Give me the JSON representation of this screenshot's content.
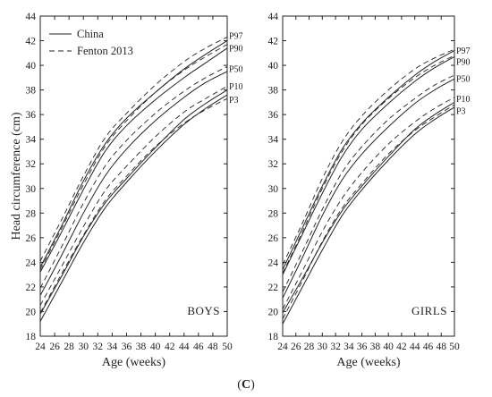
{
  "figure": {
    "caption_open": "(",
    "caption_letter": "C",
    "caption_close": ")"
  },
  "legend": {
    "china": "China",
    "fenton": "Fenton 2013"
  },
  "chart_data": [
    {
      "type": "line",
      "panel_label": "BOYS",
      "xlabel": "Age (weeks)",
      "ylabel": "Head circumference (cm)",
      "xlim": [
        24,
        50
      ],
      "ylim": [
        18,
        44
      ],
      "xticks": [
        24,
        26,
        28,
        30,
        32,
        34,
        36,
        38,
        40,
        42,
        44,
        46,
        48,
        50
      ],
      "yticks": [
        18,
        20,
        22,
        24,
        26,
        28,
        30,
        32,
        34,
        36,
        38,
        40,
        42,
        44
      ],
      "legend_position": "top-left",
      "grid": false,
      "x": [
        24,
        27,
        30,
        33,
        36,
        40,
        44,
        47,
        50
      ],
      "series": [
        {
          "name": "China",
          "style": "solid",
          "percentile": "P97",
          "values": [
            23.6,
            27.0,
            30.6,
            33.6,
            35.7,
            37.8,
            39.7,
            40.9,
            42.0
          ]
        },
        {
          "name": "China",
          "style": "solid",
          "percentile": "P90",
          "values": [
            23.2,
            26.5,
            29.9,
            33.0,
            35.1,
            37.2,
            39.0,
            40.2,
            41.4
          ]
        },
        {
          "name": "China",
          "style": "solid",
          "percentile": "P50",
          "values": [
            21.3,
            24.6,
            28.0,
            31.0,
            33.2,
            35.5,
            37.4,
            38.6,
            39.5
          ]
        },
        {
          "name": "China",
          "style": "solid",
          "percentile": "P10",
          "values": [
            19.8,
            22.9,
            26.1,
            28.8,
            30.8,
            33.3,
            35.6,
            36.9,
            38.0
          ]
        },
        {
          "name": "China",
          "style": "solid",
          "percentile": "P3",
          "values": [
            19.2,
            22.4,
            25.6,
            28.4,
            30.5,
            33.0,
            35.2,
            36.5,
            37.6
          ]
        },
        {
          "name": "Fenton 2013",
          "style": "dashed",
          "percentile": "P97",
          "values": [
            24.1,
            27.5,
            31.0,
            34.1,
            36.1,
            38.4,
            40.3,
            41.4,
            42.3
          ]
        },
        {
          "name": "Fenton 2013",
          "style": "dashed",
          "percentile": "P90",
          "values": [
            23.4,
            26.8,
            30.3,
            33.4,
            35.5,
            37.8,
            39.6,
            40.7,
            41.7
          ]
        },
        {
          "name": "Fenton 2013",
          "style": "dashed",
          "percentile": "P50",
          "values": [
            21.9,
            25.3,
            28.8,
            31.8,
            33.9,
            36.1,
            37.9,
            39.0,
            39.9
          ]
        },
        {
          "name": "Fenton 2013",
          "style": "dashed",
          "percentile": "P10",
          "values": [
            20.5,
            23.7,
            26.9,
            29.8,
            31.8,
            34.2,
            36.2,
            37.3,
            38.3
          ]
        },
        {
          "name": "Fenton 2013",
          "style": "dashed",
          "percentile": "P3",
          "values": [
            19.9,
            23.1,
            26.2,
            29.0,
            31.0,
            33.4,
            35.3,
            36.4,
            37.3
          ]
        }
      ],
      "percentile_labels": [
        "P97",
        "P90",
        "P50",
        "P10",
        "P3"
      ],
      "percentile_label_y": [
        42.4,
        41.4,
        39.7,
        38.3,
        37.2
      ]
    },
    {
      "type": "line",
      "panel_label": "GIRLS",
      "xlabel": "Age (weeks)",
      "ylabel": "",
      "xlim": [
        24,
        50
      ],
      "ylim": [
        18,
        44
      ],
      "xticks": [
        24,
        26,
        28,
        30,
        32,
        34,
        36,
        38,
        40,
        42,
        44,
        46,
        48,
        50
      ],
      "yticks": [
        18,
        20,
        22,
        24,
        26,
        28,
        30,
        32,
        34,
        36,
        38,
        40,
        42,
        44
      ],
      "grid": false,
      "x": [
        24,
        27,
        30,
        33,
        36,
        40,
        44,
        47,
        50
      ],
      "series": [
        {
          "name": "China",
          "style": "solid",
          "percentile": "P97",
          "values": [
            23.4,
            26.8,
            30.2,
            33.2,
            35.3,
            37.4,
            39.2,
            40.3,
            41.2
          ]
        },
        {
          "name": "China",
          "style": "solid",
          "percentile": "P90",
          "values": [
            23.0,
            26.3,
            29.6,
            32.6,
            34.8,
            36.9,
            38.7,
            39.8,
            40.7
          ]
        },
        {
          "name": "China",
          "style": "solid",
          "percentile": "P50",
          "values": [
            21.1,
            24.4,
            27.8,
            30.7,
            32.8,
            35.0,
            36.9,
            38.0,
            38.9
          ]
        },
        {
          "name": "China",
          "style": "solid",
          "percentile": "P10",
          "values": [
            19.9,
            22.7,
            25.6,
            28.2,
            30.2,
            32.6,
            34.8,
            36.0,
            37.0
          ]
        },
        {
          "name": "China",
          "style": "solid",
          "percentile": "P3",
          "values": [
            19.0,
            22.0,
            25.0,
            27.8,
            29.9,
            32.3,
            34.4,
            35.6,
            36.6
          ]
        },
        {
          "name": "Fenton 2013",
          "style": "dashed",
          "percentile": "P97",
          "values": [
            23.8,
            27.2,
            30.8,
            33.8,
            35.9,
            38.0,
            39.7,
            40.6,
            41.3
          ]
        },
        {
          "name": "Fenton 2013",
          "style": "dashed",
          "percentile": "P90",
          "values": [
            23.1,
            26.5,
            30.0,
            33.0,
            35.2,
            37.3,
            39.0,
            40.0,
            40.8
          ]
        },
        {
          "name": "Fenton 2013",
          "style": "dashed",
          "percentile": "P50",
          "values": [
            21.6,
            24.9,
            28.3,
            31.3,
            33.4,
            35.6,
            37.3,
            38.4,
            39.2
          ]
        },
        {
          "name": "Fenton 2013",
          "style": "dashed",
          "percentile": "P10",
          "values": [
            20.2,
            23.3,
            26.5,
            29.2,
            31.3,
            33.6,
            35.4,
            36.5,
            37.4
          ]
        },
        {
          "name": "Fenton 2013",
          "style": "dashed",
          "percentile": "P3",
          "values": [
            19.4,
            22.5,
            25.7,
            28.4,
            30.4,
            32.8,
            34.7,
            35.8,
            36.8
          ]
        }
      ],
      "percentile_labels": [
        "P97",
        "P90",
        "P50",
        "P10",
        "P3"
      ],
      "percentile_label_y": [
        41.2,
        40.3,
        38.9,
        37.3,
        36.3
      ]
    }
  ]
}
